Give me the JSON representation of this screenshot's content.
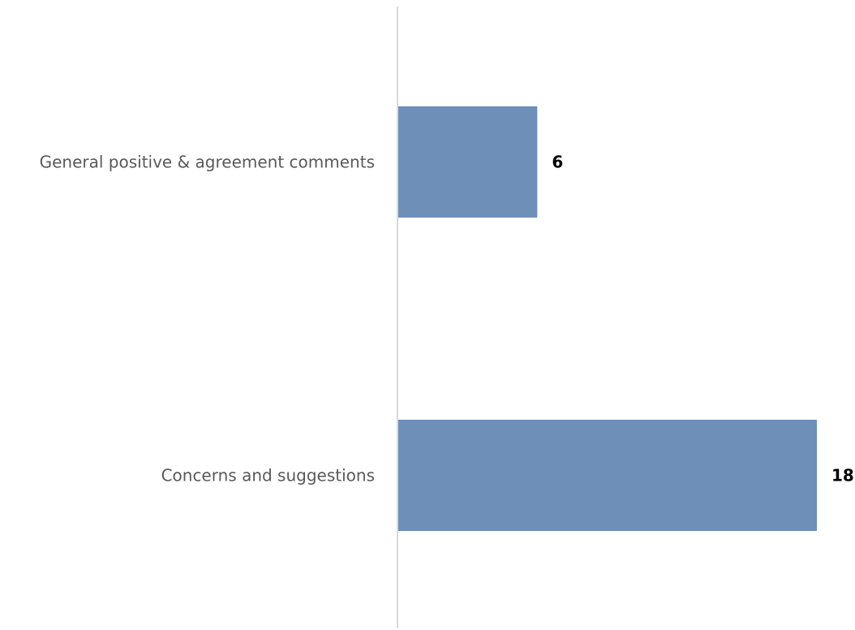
{
  "chart_data": {
    "type": "bar",
    "orientation": "horizontal",
    "categories": [
      "General positive & agreement comments",
      "Concerns and suggestions"
    ],
    "values": [
      6,
      18
    ],
    "data_labels": [
      "6",
      "18"
    ],
    "xlim": [
      0,
      18
    ],
    "grid": false,
    "legend": "none",
    "title": "",
    "xlabel": "",
    "ylabel": "",
    "colors": {
      "bar": "#6d8fb8",
      "axis": "#d9d9d9",
      "category_text": "#595959",
      "value_text": "#000000"
    }
  }
}
